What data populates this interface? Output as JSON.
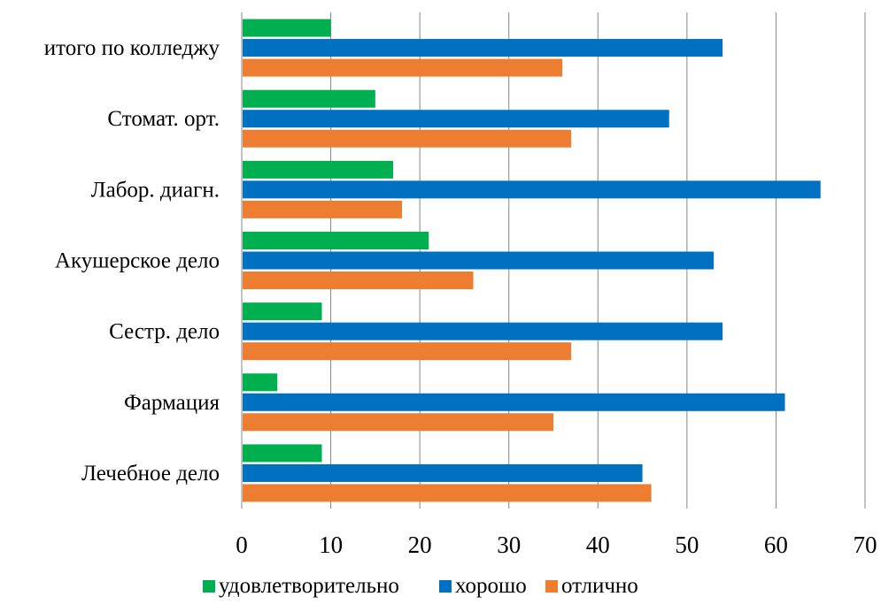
{
  "chart_data": {
    "type": "bar",
    "orientation": "horizontal",
    "categories": [
      "Лечебное дело",
      "Фармация",
      "Сестр. дело",
      "Акушерское дело",
      "Лабор. диагн.",
      "Стомат. орт.",
      "итого по колледжу"
    ],
    "series": [
      {
        "name": "удовлетворительно",
        "color": "#00b050",
        "values": [
          9,
          4,
          9,
          21,
          17,
          15,
          10
        ]
      },
      {
        "name": "хорошо",
        "color": "#0070c0",
        "values": [
          45,
          61,
          54,
          53,
          65,
          48,
          54
        ]
      },
      {
        "name": "отлично",
        "color": "#ed7d31",
        "values": [
          46,
          35,
          37,
          26,
          18,
          37,
          36
        ]
      }
    ],
    "xlim": [
      0,
      70
    ],
    "xticks": [
      "0",
      "10",
      "20",
      "30",
      "40",
      "50",
      "60",
      "70"
    ],
    "grid": "vertical",
    "legend_position": "bottom"
  }
}
